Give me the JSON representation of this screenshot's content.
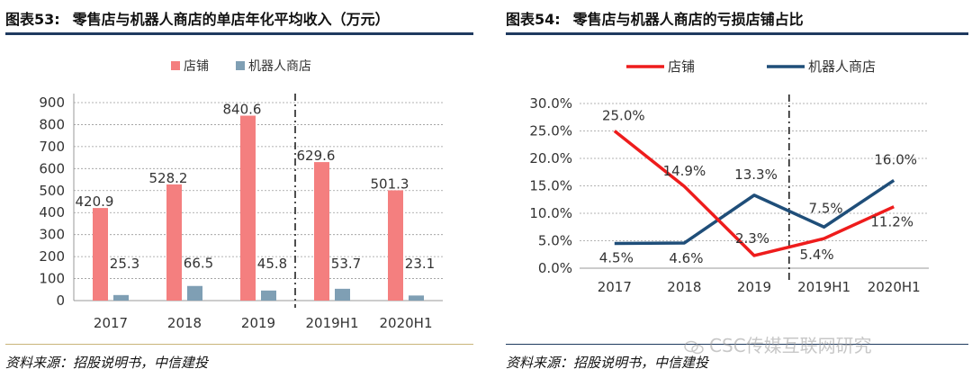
{
  "left": {
    "figure_number": "图表53:",
    "title": "零售店与机器人商店的单店年化平均收入（万元）",
    "source": "资料来源：招股说明书，中信建投"
  },
  "right": {
    "figure_number": "图表54:",
    "title": "零售店与机器人商店的亏损店铺占比",
    "source": "资料来源：招股说明书，中信建投"
  },
  "watermark": "CSC传媒互联网研究",
  "chart_data": [
    {
      "type": "bar",
      "title": "",
      "categories": [
        "2017",
        "2018",
        "2019",
        "2019H1",
        "2020H1"
      ],
      "series": [
        {
          "name": "店铺",
          "values": [
            420.9,
            528.2,
            840.6,
            629.6,
            501.3
          ],
          "color": "#f47f7f"
        },
        {
          "name": "机器人商店",
          "values": [
            25.3,
            66.5,
            45.8,
            53.7,
            23.1
          ],
          "color": "#7f9fb4"
        }
      ],
      "data_labels": [
        "420.9",
        "528.2",
        "840.6",
        "629.6",
        "501.3",
        "25.3",
        "66.5",
        "45.8",
        "53.7",
        "23.1"
      ],
      "ylim": [
        0,
        900
      ],
      "yticks": [
        "0",
        "100",
        "200",
        "300",
        "400",
        "500",
        "600",
        "700",
        "800",
        "900"
      ],
      "grid": "dashed horizontal",
      "divider_after_category": "2019",
      "legend": "top"
    },
    {
      "type": "line",
      "title": "",
      "categories": [
        "2017",
        "2018",
        "2019",
        "2019H1",
        "2020H1"
      ],
      "series": [
        {
          "name": "店铺",
          "values": [
            25.0,
            14.9,
            2.3,
            5.4,
            11.2
          ],
          "labels": [
            "25.0%",
            "14.9%",
            "2.3%",
            "5.4%",
            "11.2%"
          ],
          "color": "#ee1c1c"
        },
        {
          "name": "机器人商店",
          "values": [
            4.5,
            4.6,
            13.3,
            7.5,
            16.0
          ],
          "labels": [
            "4.5%",
            "4.6%",
            "13.3%",
            "7.5%",
            "16.0%"
          ],
          "color": "#1f4e79"
        }
      ],
      "ylim": [
        0,
        30
      ],
      "yticks": [
        "0.0%",
        "5.0%",
        "10.0%",
        "15.0%",
        "20.0%",
        "25.0%",
        "30.0%"
      ],
      "grid": "dashed horizontal",
      "divider_after_category": "2019",
      "legend": "top"
    }
  ]
}
